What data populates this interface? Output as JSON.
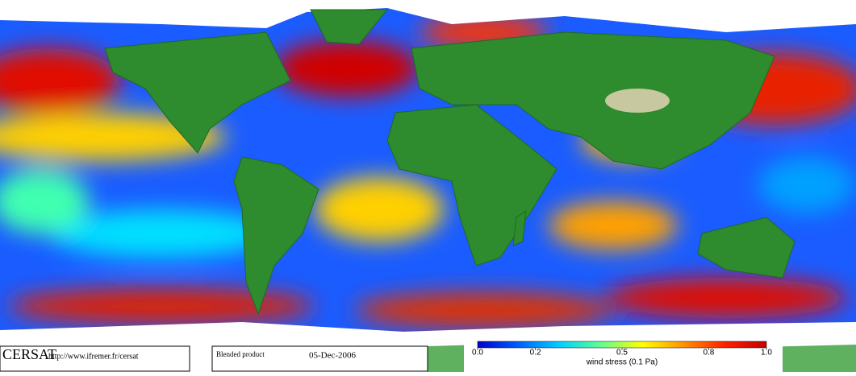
{
  "footer": {
    "logo": "CERSAT",
    "url": "http://www.ifremer.fr/cersat",
    "product": "Blended product",
    "date": "05-Dec-2006"
  },
  "colorbar": {
    "label": "wind stress (0.1 Pa)",
    "lim": [
      0,
      1
    ],
    "ticks": [
      {
        "value": 0,
        "label": "0.0"
      },
      0.2,
      0.5,
      0.8,
      {
        "value": 1,
        "label": "1.0"
      }
    ],
    "colors": [
      "#0000c8",
      "#0060ff",
      "#00d0ff",
      "#60ff90",
      "#ffff00",
      "#ff9000",
      "#ff2000",
      "#c00000"
    ]
  }
}
